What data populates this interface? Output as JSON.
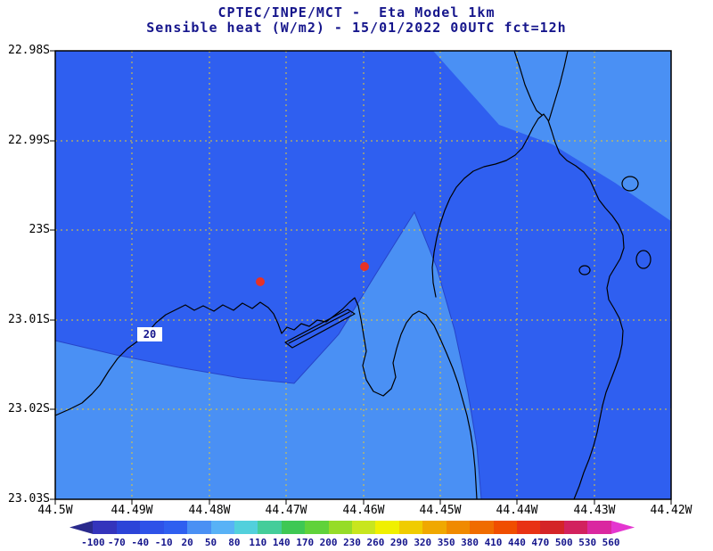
{
  "title": {
    "line1": "CPTEC/INPE/MCT -  Eta Model 1km",
    "line2": "Sensible heat (W/m2) - 15/01/2022 00UTC fct=12h"
  },
  "axes": {
    "lat_labels": [
      "22.98S",
      "22.99S",
      "23S",
      "23.01S",
      "23.02S",
      "23.03S"
    ],
    "lon_labels": [
      "44.5W",
      "44.49W",
      "44.48W",
      "44.47W",
      "44.46W",
      "44.45W",
      "44.44W",
      "44.43W",
      "44.42W"
    ]
  },
  "map": {
    "contour_label": "20",
    "marker_color": "#e63226",
    "gridline_color": "#e6c832",
    "contour_line_color": "#2744c8",
    "field_colors": {
      "main": "#2f5ff0",
      "light": "#4a90f4"
    }
  },
  "colorbar": {
    "labels": [
      "-100",
      "-70",
      "-40",
      "-10",
      "20",
      "50",
      "80",
      "110",
      "140",
      "170",
      "200",
      "230",
      "260",
      "290",
      "320",
      "350",
      "380",
      "410",
      "440",
      "470",
      "500",
      "530",
      "560"
    ],
    "colors": [
      "#2a2a8c",
      "#3434bc",
      "#2c44d8",
      "#2e52e8",
      "#2f5ff0",
      "#4a90f4",
      "#58b2f6",
      "#52d0dc",
      "#44cd9a",
      "#3ec854",
      "#60d23a",
      "#96dc28",
      "#c8e61e",
      "#f0f000",
      "#f0cc00",
      "#f0a800",
      "#f08a00",
      "#f06c00",
      "#f04e00",
      "#e83214",
      "#d42428",
      "#d2215e",
      "#da28a0",
      "#e436d0"
    ]
  },
  "chart_data": {
    "type": "heatmap",
    "title": "CPTEC/INPE/MCT -  Eta Model 1km",
    "subtitle": "Sensible heat (W/m2) - 15/01/2022 00UTC fct=12h",
    "variable": "Sensible heat",
    "units": "W/m2",
    "model": "Eta Model 1km",
    "init_time": "15/01/2022 00UTC",
    "forecast": "fct=12h",
    "lat_ticks": [
      "22.98S",
      "22.99S",
      "23S",
      "23.01S",
      "23.02S",
      "23.03S"
    ],
    "lon_ticks": [
      "44.5W",
      "44.49W",
      "44.48W",
      "44.47W",
      "44.46W",
      "44.45W",
      "44.44W",
      "44.43W",
      "44.42W"
    ],
    "colorbar_levels": [
      -100,
      -70,
      -40,
      -10,
      20,
      50,
      80,
      110,
      140,
      170,
      200,
      230,
      260,
      290,
      320,
      350,
      380,
      410,
      440,
      470,
      500,
      530,
      560
    ],
    "depicted_values": "Shaded field spans only the -10 to 50 W/m2 bins: -10 to 20 W/m2 over most of the domain, 20 to 50 W/m2 over the south-central coastal bay band and the northeast corner; a contour labeled 20 marks the boundary near 44.49W/23.01S",
    "markers": [
      {
        "type": "station-dot",
        "approx_lon": "44.473W",
        "approx_lat": "23.006S"
      },
      {
        "type": "station-dot",
        "approx_lon": "44.460W",
        "approx_lat": "23.004S"
      }
    ],
    "legend_position": "bottom-colorbar",
    "grid": "dotted yellow lat/lon graticule"
  }
}
